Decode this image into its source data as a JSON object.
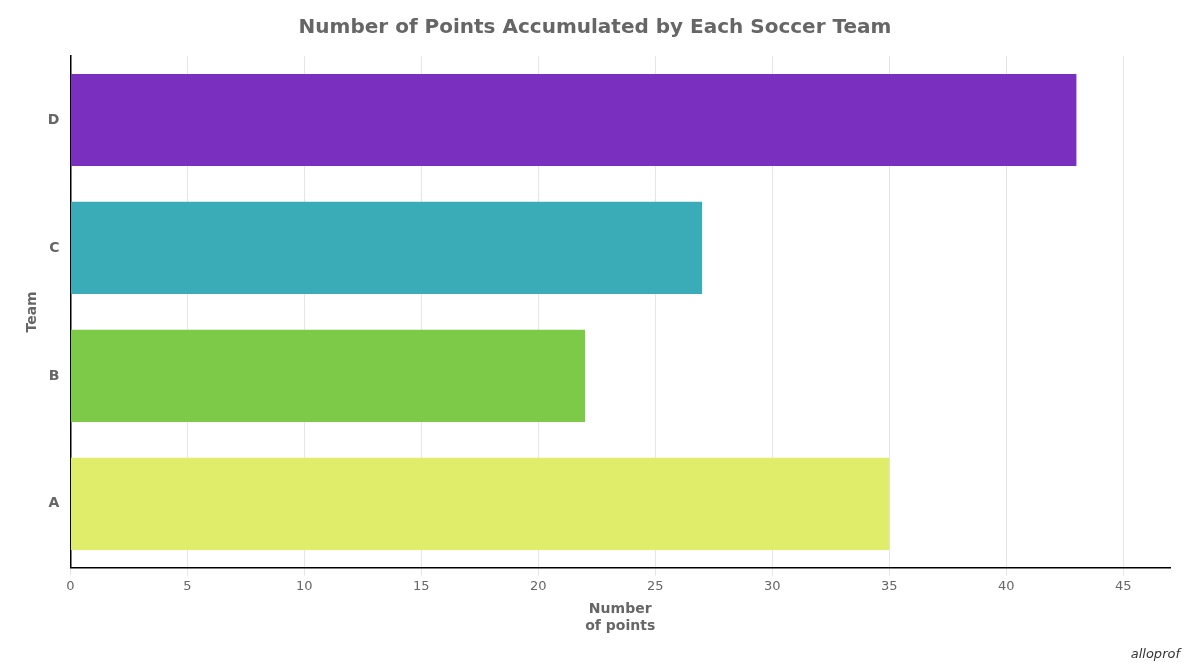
{
  "chart_data": {
    "type": "bar",
    "orientation": "horizontal",
    "title": "Number of Points Accumulated by Each Soccer Team",
    "categories": [
      "A",
      "B",
      "C",
      "D"
    ],
    "values": [
      35,
      22,
      27,
      43
    ],
    "colors": [
      "#E0ED6A",
      "#7DC948",
      "#3AACB8",
      "#7B2FBE"
    ],
    "xlabel": "Number\nof points",
    "ylabel": "Team",
    "xlim": [
      0,
      47
    ],
    "xticks": [
      0,
      5,
      10,
      15,
      20,
      25,
      30,
      35,
      40,
      45
    ],
    "grid": true,
    "annotations": [
      "alloprof"
    ]
  }
}
